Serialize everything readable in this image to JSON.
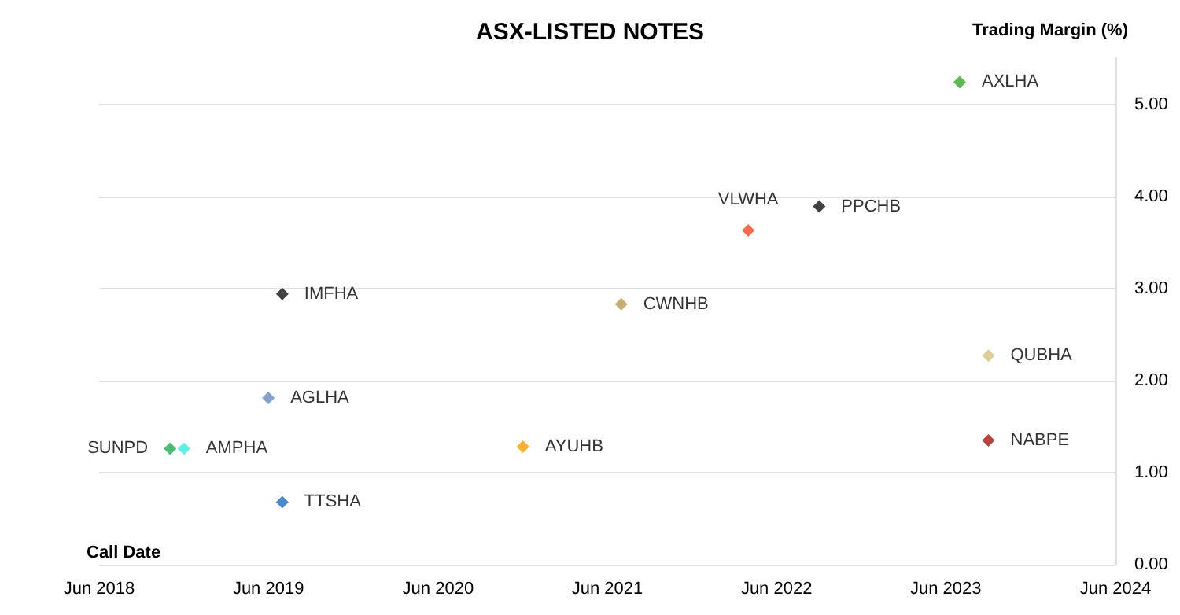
{
  "chart_data": {
    "type": "scatter",
    "title": "ASX-LISTED NOTES",
    "xlabel": "Call Date",
    "ylabel": "Trading Margin (%)",
    "xlim": [
      "2018-06",
      "2024-06"
    ],
    "xticks": [
      {
        "value": "2018-06",
        "label": "Jun 2018"
      },
      {
        "value": "2019-06",
        "label": "Jun 2019"
      },
      {
        "value": "2020-06",
        "label": "Jun 2020"
      },
      {
        "value": "2021-06",
        "label": "Jun 2021"
      },
      {
        "value": "2022-06",
        "label": "Jun 2022"
      },
      {
        "value": "2023-06",
        "label": "Jun 2023"
      },
      {
        "value": "2024-06",
        "label": "Jun 2024"
      }
    ],
    "ylim": [
      0,
      5.5
    ],
    "yticks": [
      {
        "value": 0,
        "label": "0.00"
      },
      {
        "value": 1,
        "label": "1.00"
      },
      {
        "value": 2,
        "label": "2.00"
      },
      {
        "value": 3,
        "label": "3.00"
      },
      {
        "value": 4,
        "label": "4.00"
      },
      {
        "value": 5,
        "label": "5.00"
      }
    ],
    "grid": "y",
    "legend": false,
    "marker": "diamond",
    "series": [
      {
        "name": "AXLHA",
        "color": "#33aa22",
        "x": [
          "2023-07"
        ],
        "values": [
          5.24
        ]
      },
      {
        "name": "VLWHA",
        "color": "#ff4422",
        "x": [
          "2022-04"
        ],
        "values": [
          3.63
        ]
      },
      {
        "name": "PPCHB",
        "color": "#111111",
        "x": [
          "2022-09"
        ],
        "values": [
          3.89
        ]
      },
      {
        "name": "IMFHA",
        "color": "#111111",
        "x": [
          "2019-07"
        ],
        "values": [
          2.94
        ]
      },
      {
        "name": "CWNHB",
        "color": "#b89a50",
        "x": [
          "2021-07"
        ],
        "values": [
          2.83
        ]
      },
      {
        "name": "QUBHA",
        "color": "#d8c080",
        "x": [
          "2023-09"
        ],
        "values": [
          2.27
        ]
      },
      {
        "name": "AGLHA",
        "color": "#6688bb",
        "x": [
          "2019-06"
        ],
        "values": [
          1.81
        ]
      },
      {
        "name": "SUNPD",
        "color": "#22aa55",
        "x": [
          "2018-11"
        ],
        "values": [
          1.26
        ]
      },
      {
        "name": "AMPHA",
        "color": "#33eedd",
        "x": [
          "2018-12"
        ],
        "values": [
          1.26
        ]
      },
      {
        "name": "AYUHB",
        "color": "#ff9900",
        "x": [
          "2020-12"
        ],
        "values": [
          1.28
        ]
      },
      {
        "name": "NABPE",
        "color": "#aa1111",
        "x": [
          "2023-09"
        ],
        "values": [
          1.35
        ]
      },
      {
        "name": "TTSHA",
        "color": "#1a6ec0",
        "x": [
          "2019-07"
        ],
        "values": [
          0.68
        ]
      }
    ]
  }
}
